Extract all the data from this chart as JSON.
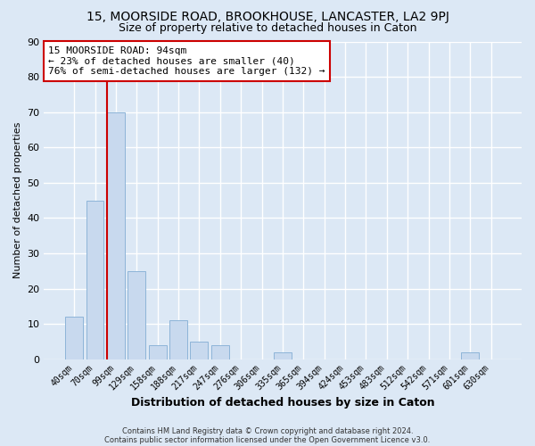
{
  "title": "15, MOORSIDE ROAD, BROOKHOUSE, LANCASTER, LA2 9PJ",
  "subtitle": "Size of property relative to detached houses in Caton",
  "xlabel": "Distribution of detached houses by size in Caton",
  "ylabel": "Number of detached properties",
  "categories": [
    "40sqm",
    "70sqm",
    "99sqm",
    "129sqm",
    "158sqm",
    "188sqm",
    "217sqm",
    "247sqm",
    "276sqm",
    "306sqm",
    "335sqm",
    "365sqm",
    "394sqm",
    "424sqm",
    "453sqm",
    "483sqm",
    "512sqm",
    "542sqm",
    "571sqm",
    "601sqm",
    "630sqm"
  ],
  "values": [
    12,
    45,
    70,
    25,
    4,
    11,
    5,
    4,
    0,
    0,
    2,
    0,
    0,
    0,
    0,
    0,
    0,
    0,
    0,
    2,
    0
  ],
  "bar_color": "#c8d9ee",
  "bar_edge_color": "#8db4d8",
  "vline_color": "#cc0000",
  "annotation_text": "15 MOORSIDE ROAD: 94sqm\n← 23% of detached houses are smaller (40)\n76% of semi-detached houses are larger (132) →",
  "annotation_box_edgecolor": "#cc0000",
  "annotation_fontsize": 8.0,
  "ylim": [
    0,
    90
  ],
  "yticks": [
    0,
    10,
    20,
    30,
    40,
    50,
    60,
    70,
    80,
    90
  ],
  "background_color": "#dce8f5",
  "grid_color": "#ffffff",
  "footer1": "Contains HM Land Registry data © Crown copyright and database right 2024.",
  "footer2": "Contains public sector information licensed under the Open Government Licence v3.0.",
  "title_fontsize": 10,
  "subtitle_fontsize": 9,
  "xlabel_fontsize": 9,
  "ylabel_fontsize": 8
}
